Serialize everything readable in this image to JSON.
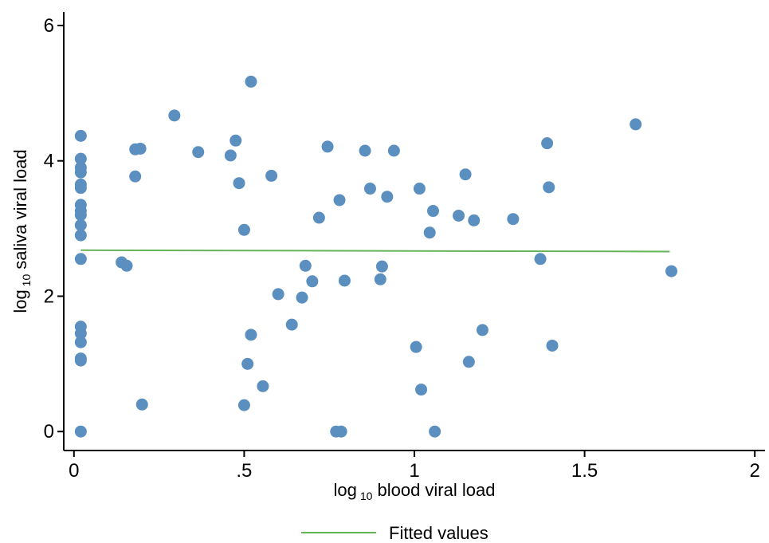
{
  "chart_data": {
    "type": "scatter",
    "title": "",
    "xlabel": {
      "prefix": "log",
      "sub": "10",
      "rest": "blood viral load"
    },
    "ylabel": {
      "prefix": "log",
      "sub": "10",
      "rest": "saliva viral load"
    },
    "xlim": [
      -0.03,
      2.03
    ],
    "ylim": [
      -0.28,
      6.2
    ],
    "x_ticks": [
      {
        "value": 0,
        "label": "0"
      },
      {
        "value": 0.5,
        "label": ".5"
      },
      {
        "value": 1,
        "label": "1"
      },
      {
        "value": 1.5,
        "label": "1.5"
      },
      {
        "value": 2,
        "label": "2"
      }
    ],
    "y_ticks": [
      {
        "value": 0,
        "label": "0"
      },
      {
        "value": 2,
        "label": "2"
      },
      {
        "value": 4,
        "label": "4"
      },
      {
        "value": 6,
        "label": "6"
      }
    ],
    "grid": false,
    "legend": {
      "position": "bottom-center",
      "entries": [
        "Fitted values"
      ]
    },
    "colors": {
      "points": "#5b8fc0",
      "fit": "#66b35a"
    },
    "points": [
      [
        0.02,
        4.37
      ],
      [
        0.02,
        4.03
      ],
      [
        0.02,
        3.9
      ],
      [
        0.02,
        3.83
      ],
      [
        0.02,
        3.65
      ],
      [
        0.02,
        3.6
      ],
      [
        0.02,
        3.35
      ],
      [
        0.02,
        3.26
      ],
      [
        0.02,
        3.2
      ],
      [
        0.02,
        3.05
      ],
      [
        0.02,
        2.9
      ],
      [
        0.02,
        2.55
      ],
      [
        0.02,
        1.55
      ],
      [
        0.02,
        1.45
      ],
      [
        0.02,
        1.32
      ],
      [
        0.02,
        1.08
      ],
      [
        0.02,
        1.05
      ],
      [
        0.02,
        0.0
      ],
      [
        0.14,
        2.5
      ],
      [
        0.155,
        2.45
      ],
      [
        0.18,
        4.17
      ],
      [
        0.195,
        4.18
      ],
      [
        0.18,
        3.77
      ],
      [
        0.2,
        0.4
      ],
      [
        0.295,
        4.67
      ],
      [
        0.365,
        4.13
      ],
      [
        0.46,
        4.08
      ],
      [
        0.475,
        4.3
      ],
      [
        0.485,
        3.67
      ],
      [
        0.5,
        2.98
      ],
      [
        0.5,
        0.39
      ],
      [
        0.51,
        1.0
      ],
      [
        0.52,
        1.43
      ],
      [
        0.52,
        5.17
      ],
      [
        0.555,
        0.67
      ],
      [
        0.58,
        3.78
      ],
      [
        0.6,
        2.03
      ],
      [
        0.64,
        1.58
      ],
      [
        0.67,
        1.98
      ],
      [
        0.68,
        2.45
      ],
      [
        0.7,
        2.22
      ],
      [
        0.72,
        3.16
      ],
      [
        0.745,
        4.21
      ],
      [
        0.77,
        0.0
      ],
      [
        0.785,
        0.0
      ],
      [
        0.78,
        3.42
      ],
      [
        0.795,
        2.23
      ],
      [
        0.855,
        4.15
      ],
      [
        0.87,
        3.59
      ],
      [
        0.9,
        2.25
      ],
      [
        0.905,
        2.44
      ],
      [
        0.92,
        3.47
      ],
      [
        0.94,
        4.15
      ],
      [
        1.005,
        1.25
      ],
      [
        1.015,
        3.59
      ],
      [
        1.02,
        0.62
      ],
      [
        1.045,
        2.94
      ],
      [
        1.055,
        3.26
      ],
      [
        1.06,
        0.0
      ],
      [
        1.13,
        3.19
      ],
      [
        1.15,
        3.8
      ],
      [
        1.16,
        1.03
      ],
      [
        1.175,
        3.12
      ],
      [
        1.2,
        1.5
      ],
      [
        1.29,
        3.14
      ],
      [
        1.37,
        2.55
      ],
      [
        1.39,
        4.26
      ],
      [
        1.395,
        3.61
      ],
      [
        1.405,
        1.27
      ],
      [
        1.65,
        4.54
      ],
      [
        1.755,
        2.37
      ]
    ],
    "fitted_line": [
      [
        0.02,
        2.68
      ],
      [
        1.75,
        2.66
      ]
    ]
  }
}
